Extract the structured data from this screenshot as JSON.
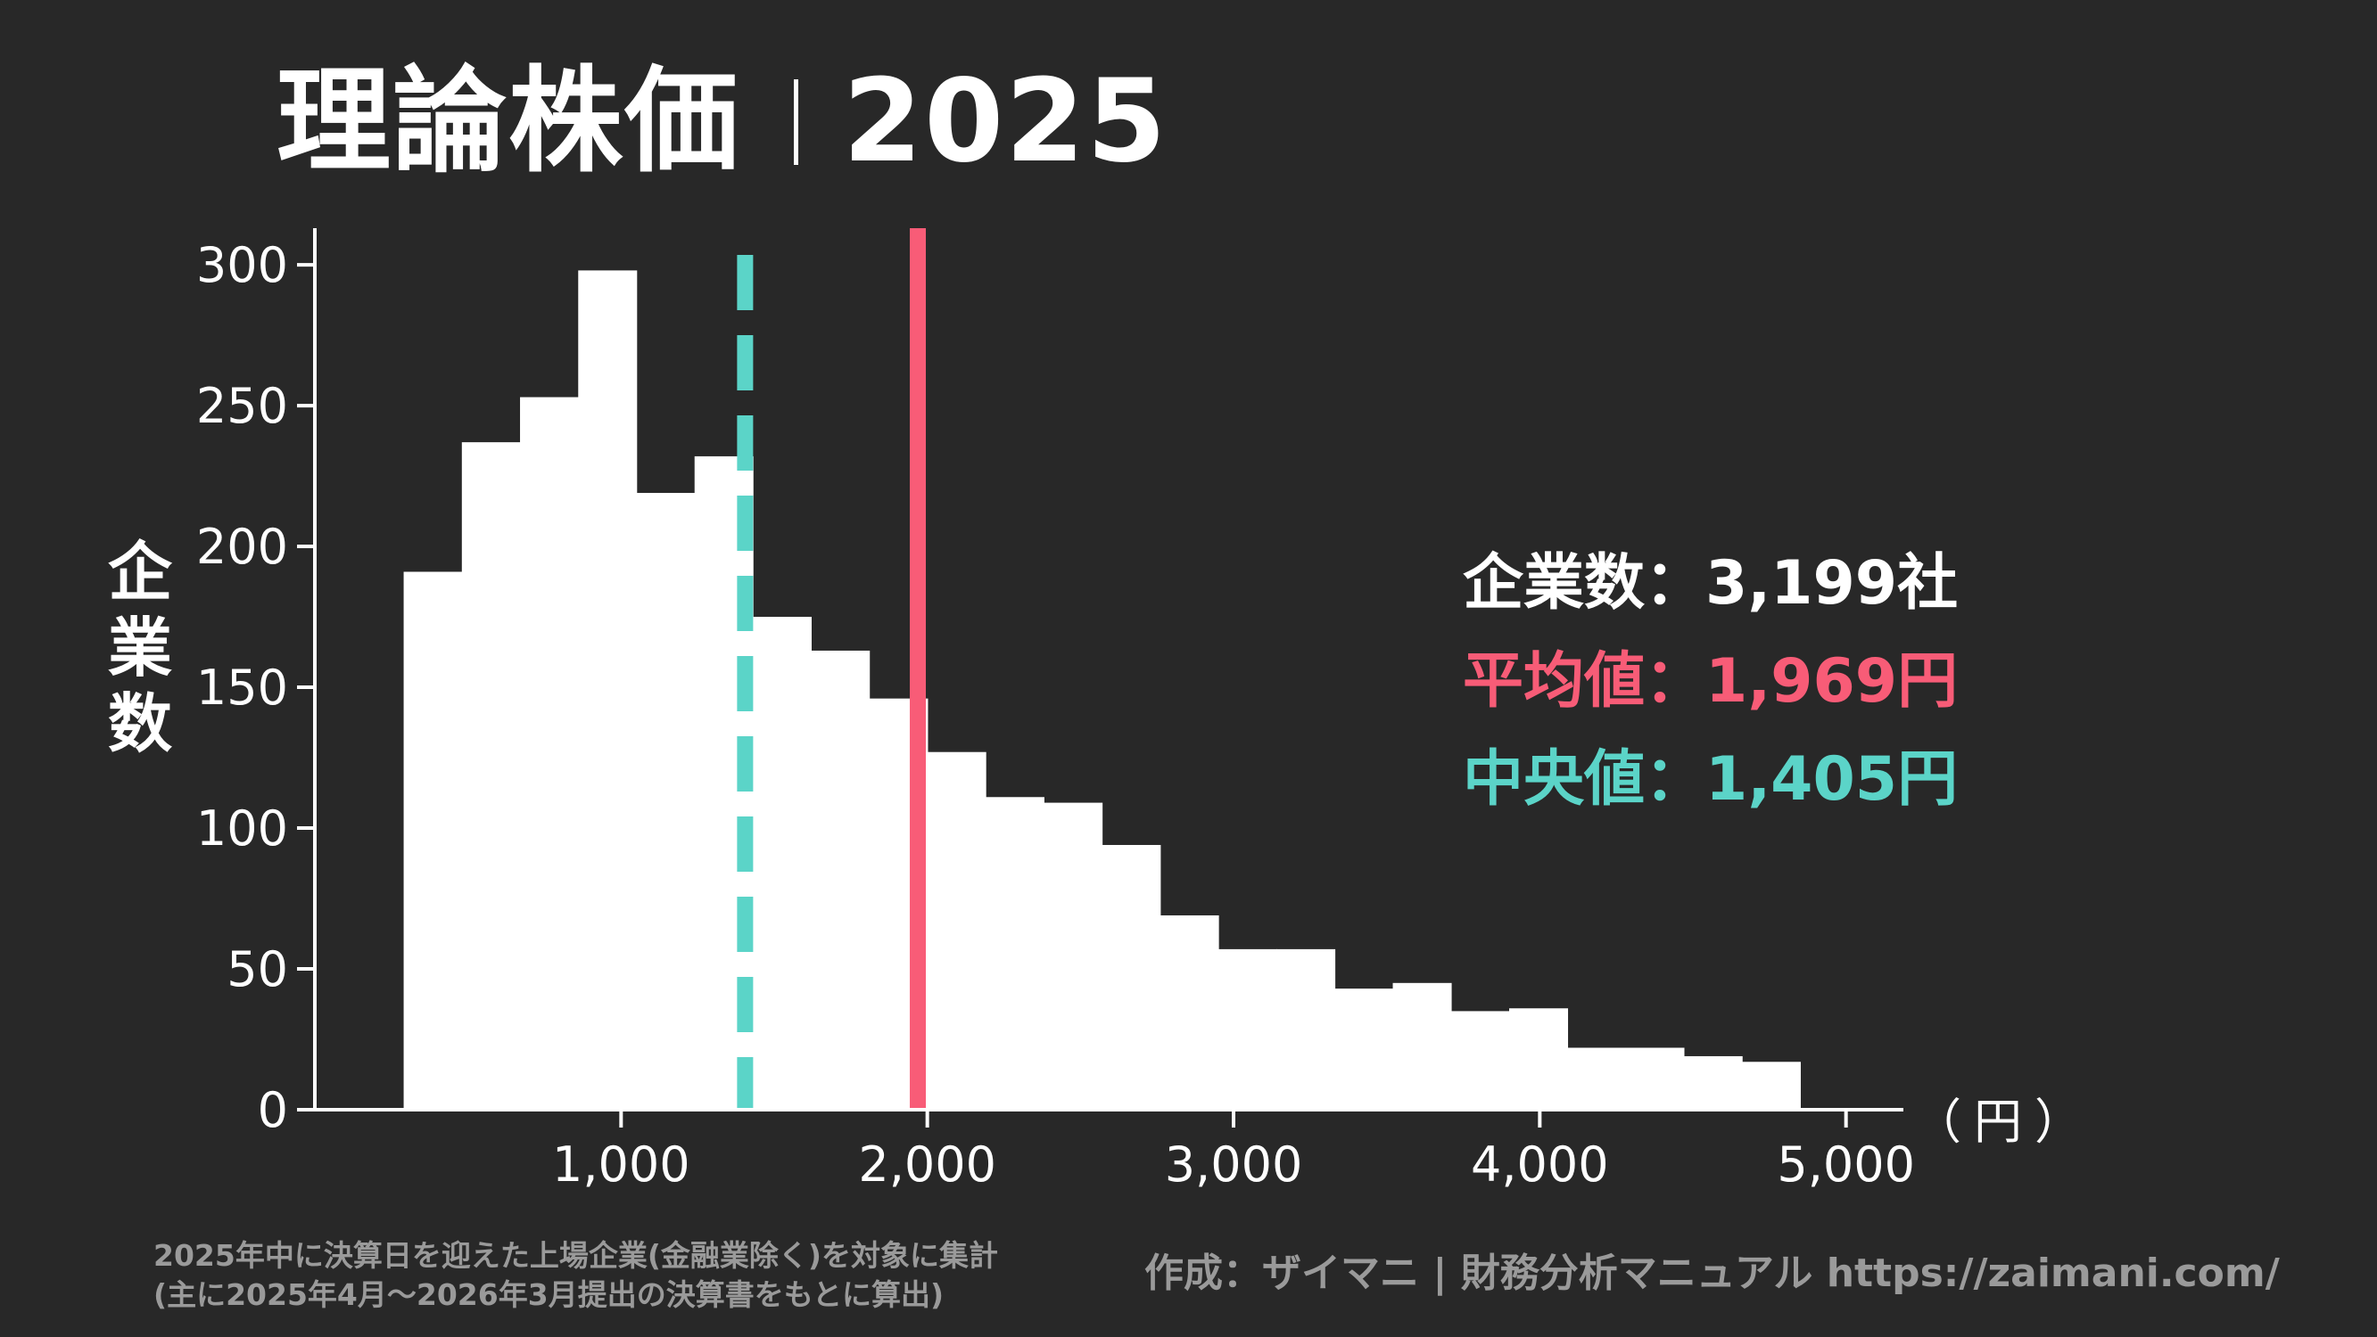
{
  "title": {
    "main": "理論株価",
    "year": "2025"
  },
  "stats": {
    "count_label": "企業数",
    "count_value": "3,199社",
    "mean_label": "平均値",
    "mean_value": "1,969円",
    "median_label": "中央値",
    "median_value": "1,405円",
    "separator": "："
  },
  "footnotes": {
    "line1": "2025年中に決算日を迎えた上場企業(金融業除く)を対象に集計",
    "line2": "(主に2025年4月〜2026年3月提出の決算書をもとに算出)",
    "credit": "作成：ザイマニ | 財務分析マニュアル https://zaimani.com/"
  },
  "colors": {
    "background": "#282828",
    "bars": "#ffffff",
    "mean": "#f85c77",
    "median": "#5bd4c8",
    "note": "#9a9a9a"
  },
  "chart_data": {
    "type": "bar",
    "title": "理論株価｜2025",
    "xlabel": "（円）",
    "ylabel": "企業数",
    "bin_width": 190,
    "bins_start": [
      290,
      480,
      670,
      860,
      1050,
      1240,
      1430,
      1620,
      1810,
      2000,
      2190,
      2380,
      2570,
      2760,
      2950,
      3140,
      3330,
      3520,
      3710,
      3900,
      4090,
      4280,
      4470,
      4660
    ],
    "values": [
      191,
      237,
      253,
      298,
      219,
      232,
      175,
      163,
      146,
      127,
      111,
      109,
      94,
      69,
      57,
      57,
      43,
      45,
      35,
      36,
      22,
      22,
      19,
      17
    ],
    "xlim": [
      0,
      5100
    ],
    "ylim": [
      0,
      313
    ],
    "xticks": [
      1000,
      2000,
      3000,
      4000,
      5000
    ],
    "xtick_labels": [
      "1,000",
      "2,000",
      "3,000",
      "4,000",
      "5,000"
    ],
    "yticks": [
      0,
      50,
      100,
      150,
      200,
      250,
      300
    ],
    "ytick_labels": [
      "0",
      "50",
      "100",
      "150",
      "200",
      "250",
      "300"
    ],
    "mean": 1969,
    "median": 1405,
    "grid": false
  }
}
